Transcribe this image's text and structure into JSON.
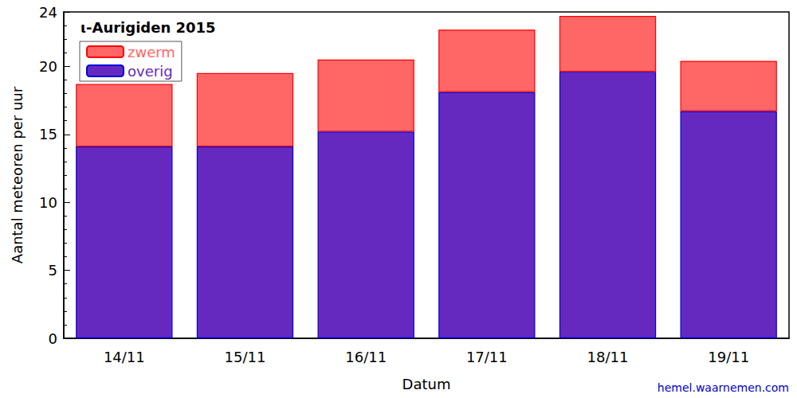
{
  "chart_data": {
    "type": "bar",
    "title": "ι-Aurigiden 2015",
    "x_label": "Datum",
    "y_label": "Aantal meteoren per uur",
    "annotations": [
      "hemel.waarnemen.com"
    ],
    "categories": [
      "14/11",
      "15/11",
      "16/11",
      "17/11",
      "18/11",
      "19/11"
    ],
    "series": [
      {
        "name": "zwerm",
        "color": "#ff6666",
        "values": [
          4.6,
          5.4,
          5.3,
          4.6,
          4.1,
          3.7
        ]
      },
      {
        "name": "overig",
        "color": "#6629c0",
        "values": [
          14.1,
          14.1,
          15.2,
          18.1,
          19.6,
          16.7
        ]
      }
    ],
    "ylim": [
      0,
      24
    ],
    "yticks": [
      0,
      5,
      10,
      15,
      20
    ],
    "stacked": true,
    "grid": false,
    "legend": "top-left"
  }
}
